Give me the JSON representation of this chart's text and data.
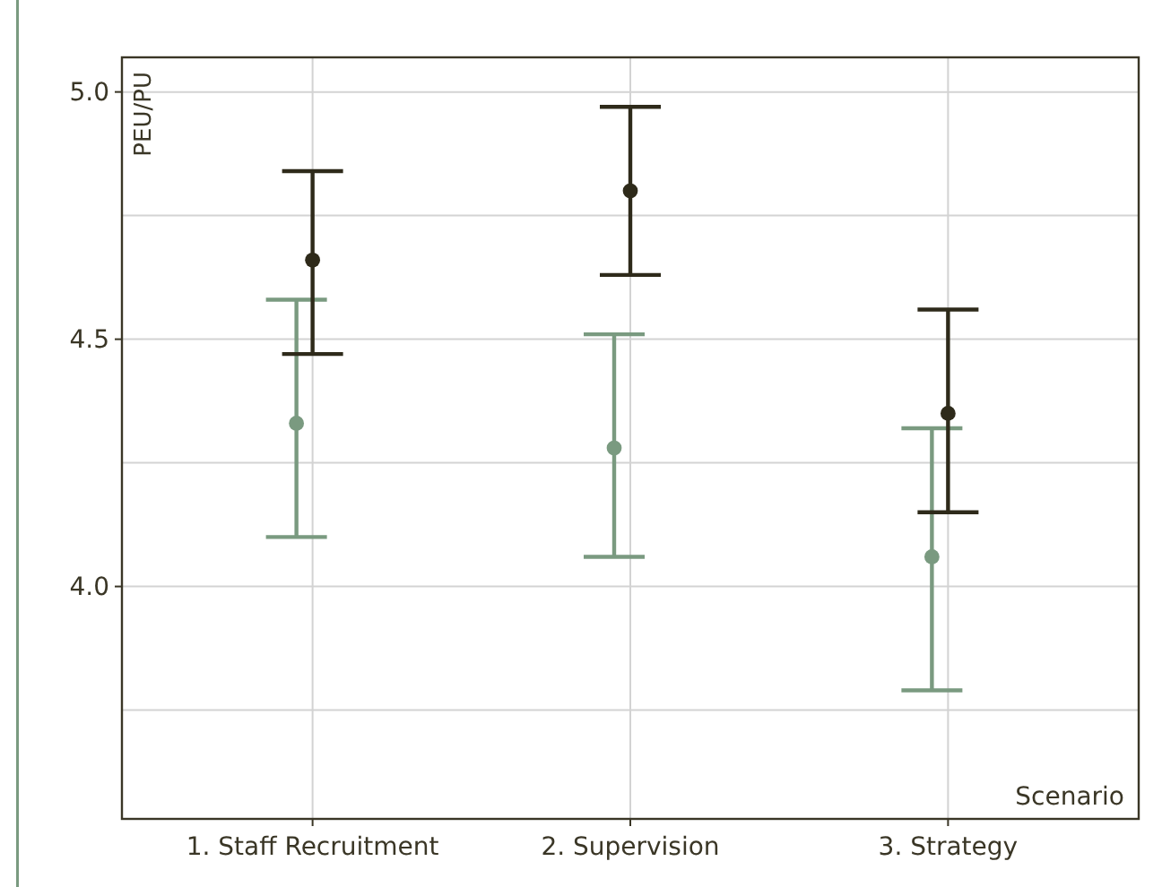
{
  "chart_data": {
    "type": "scatter",
    "xlabel": "Scenario",
    "ylabel": "PEU/PU",
    "categories": [
      "1. Staff Recruitment",
      "2. Supervision",
      "3. Strategy"
    ],
    "ylim": [
      3.53,
      5.07
    ],
    "yticks": [
      {
        "value": 3.75,
        "label": null
      },
      {
        "value": 4.0,
        "label": "4.0"
      },
      {
        "value": 4.25,
        "label": null
      },
      {
        "value": 4.5,
        "label": "4.5"
      },
      {
        "value": 4.75,
        "label": null
      },
      {
        "value": 5.0,
        "label": "5.0"
      }
    ],
    "grid": true,
    "marker": "circle",
    "series": [
      {
        "color": "#7a9a80",
        "values": [
          4.33,
          4.28,
          4.06
        ],
        "errors": [
          [
            4.1,
            4.58
          ],
          [
            4.06,
            4.51
          ],
          [
            3.79,
            4.32
          ]
        ]
      },
      {
        "color": "#2e2a1a",
        "values": [
          4.66,
          4.8,
          4.35
        ],
        "errors": [
          [
            4.47,
            4.84
          ],
          [
            4.63,
            4.97
          ],
          [
            4.15,
            4.56
          ]
        ]
      }
    ]
  }
}
